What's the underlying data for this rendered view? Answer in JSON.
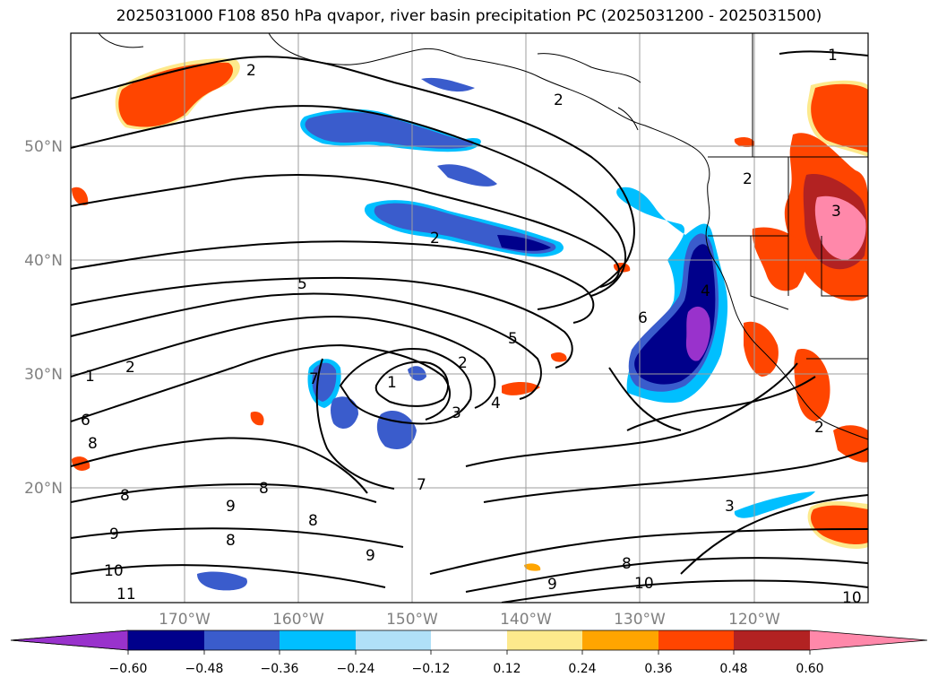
{
  "title": "2025031000 F108 850 hPa qvapor, river basin precipitation PC (2025031200 - 2025031500)",
  "colors": {
    "neg_060": "#9932cc",
    "neg_048": "#00008b",
    "neg_036": "#3a5ccc",
    "neg_024": "#00bfff",
    "neg_012": "#b0e0f8",
    "neutral": "#ffffff",
    "pos_012": "#fde98c",
    "pos_024": "#ffa500",
    "pos_036": "#ff4500",
    "pos_048": "#b22222",
    "pos_060": "#ff88aa",
    "grid": "#9e9e9e",
    "coast": "#000000"
  },
  "map": {
    "projection": "PlateCarree",
    "lon_range": [
      180,
      110
    ],
    "lat_range": [
      10,
      60
    ],
    "lon_ticks": [
      "170°W",
      "160°W",
      "150°W",
      "140°W",
      "130°W",
      "120°W"
    ],
    "lat_ticks": [
      "50°N",
      "40°N",
      "30°N",
      "20°N"
    ],
    "contour_field": "850 hPa qvapor",
    "contour_labels": [
      "1",
      "2",
      "2",
      "2",
      "5",
      "5",
      "2",
      "1",
      "3",
      "4",
      "1",
      "2",
      "6",
      "7",
      "8",
      "8",
      "9",
      "9",
      "8",
      "8",
      "8",
      "9",
      "10",
      "11",
      "7",
      "6",
      "3",
      "9",
      "8",
      "10",
      "10",
      "3",
      "2",
      "2",
      "4"
    ]
  },
  "colorbar": {
    "extend": "both",
    "tick_labels": [
      "−0.60",
      "−0.48",
      "−0.36",
      "−0.24",
      "−0.12",
      "0.12",
      "0.24",
      "0.36",
      "0.48",
      "0.60"
    ],
    "levels": [
      -0.72,
      -0.6,
      -0.48,
      -0.36,
      -0.24,
      -0.12,
      0.12,
      0.24,
      0.36,
      0.48,
      0.6,
      0.72
    ]
  }
}
